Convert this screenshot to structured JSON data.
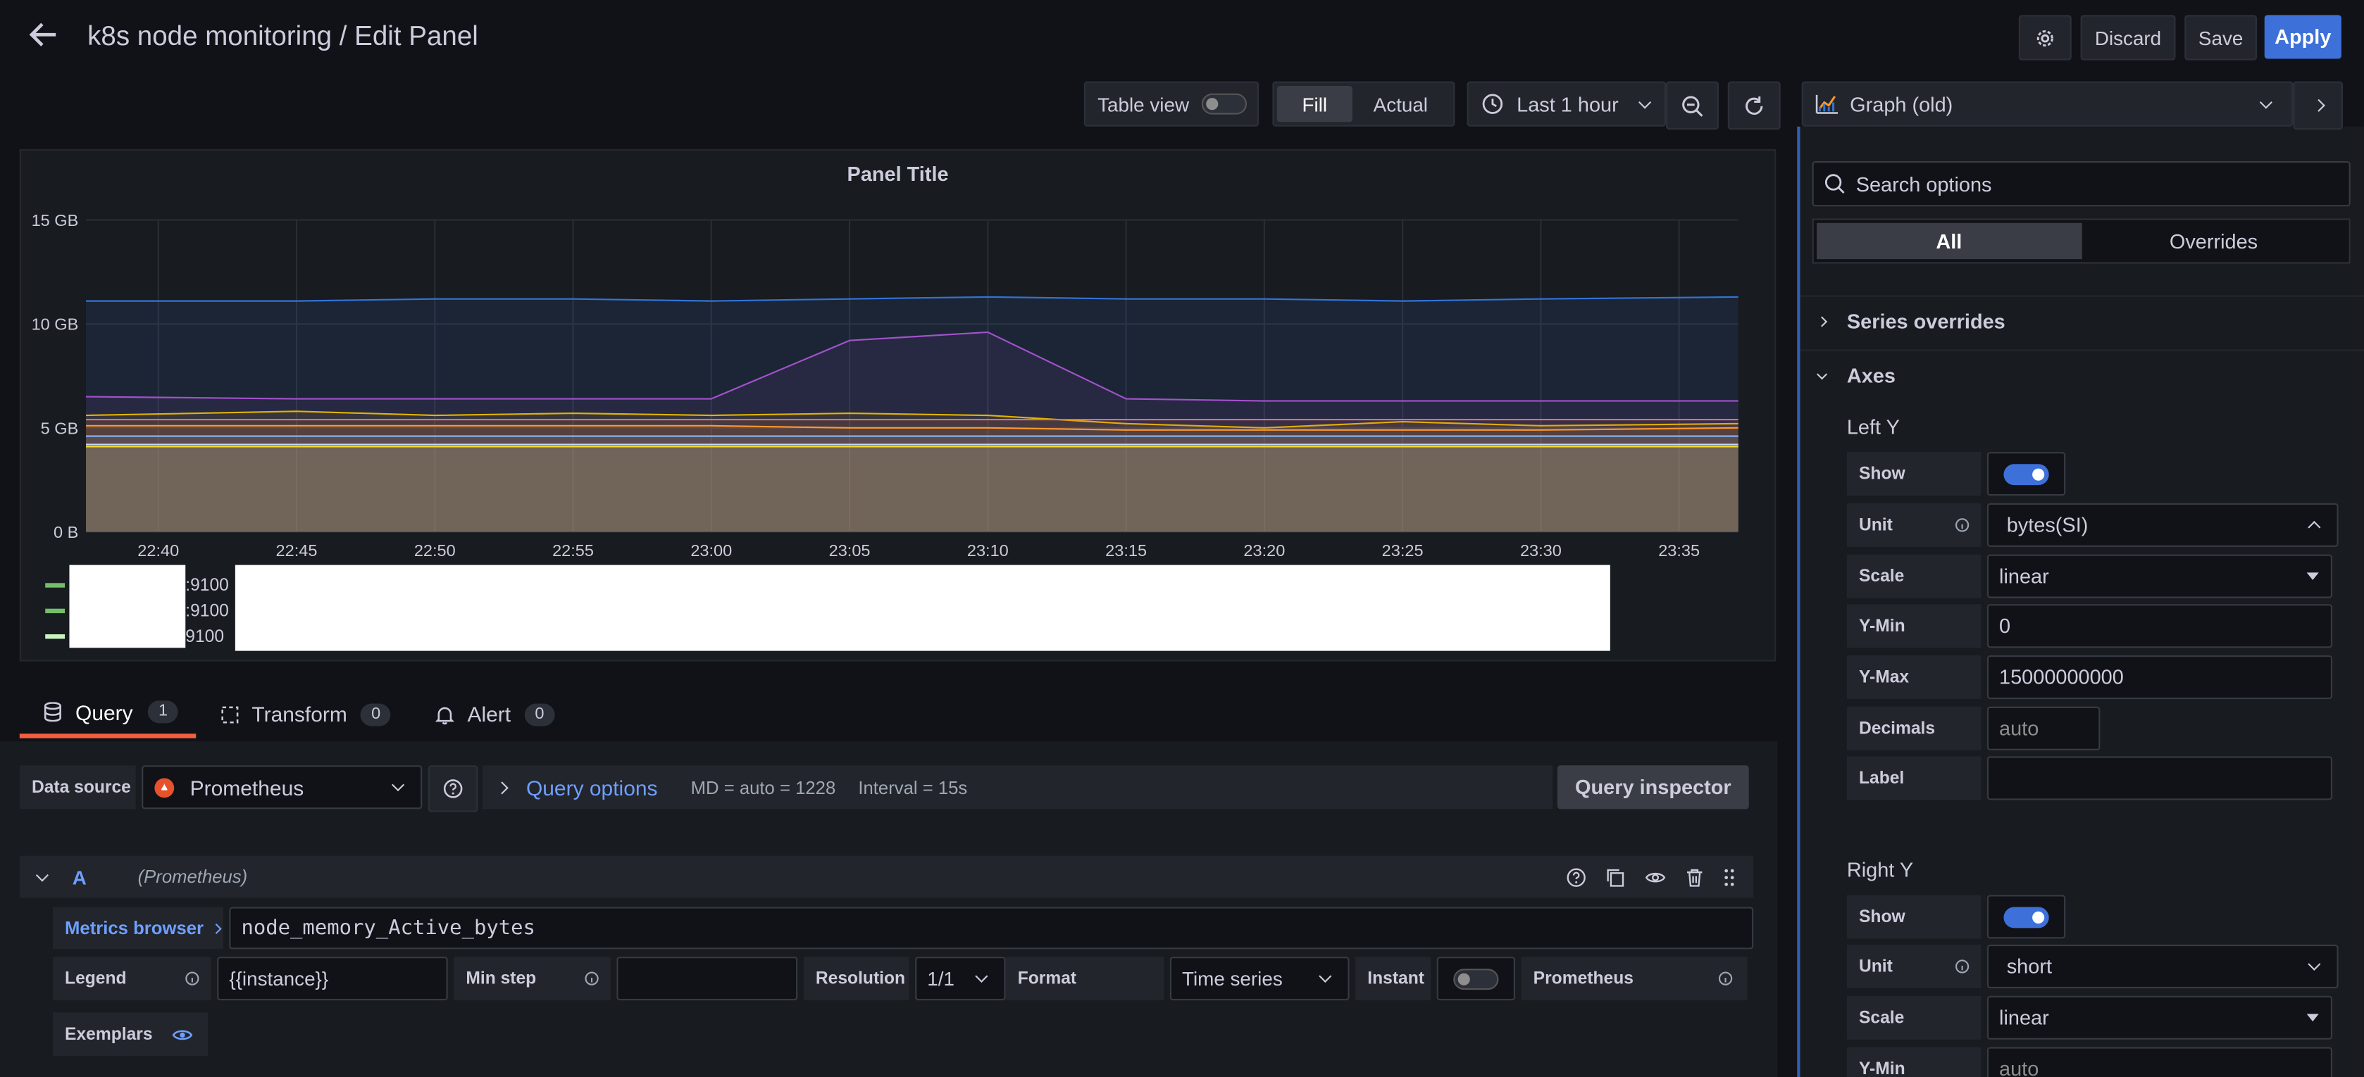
{
  "header": {
    "title": "k8s node monitoring / Edit Panel",
    "discard_label": "Discard",
    "save_label": "Save",
    "apply_label": "Apply"
  },
  "toolbar": {
    "table_view_label": "Table view",
    "table_view_on": false,
    "fill_label": "Fill",
    "actual_label": "Actual",
    "time_range": "Last 1 hour"
  },
  "viz": {
    "picker_label": "Graph (old)",
    "search_placeholder": "Search options",
    "tab_all": "All",
    "tab_overrides": "Overrides",
    "section_series_overrides": "Series overrides",
    "section_axes": "Axes",
    "left_y": {
      "title": "Left Y",
      "show_label": "Show",
      "unit_label": "Unit",
      "unit_value": "bytes(SI)",
      "scale_label": "Scale",
      "scale_value": "linear",
      "ymin_label": "Y-Min",
      "ymin_value": "0",
      "ymax_label": "Y-Max",
      "ymax_value": "15000000000",
      "decimals_label": "Decimals",
      "decimals_placeholder": "auto",
      "label_label": "Label"
    },
    "right_y": {
      "title": "Right Y",
      "show_label": "Show",
      "unit_label": "Unit",
      "unit_value": "short",
      "scale_label": "Scale",
      "scale_value": "linear",
      "ymin_label": "Y-Min",
      "ymin_placeholder": "auto"
    }
  },
  "chart_data": {
    "type": "area",
    "title": "Panel Title",
    "y_ticks": [
      "15 GB",
      "10 GB",
      "5 GB",
      "0 B"
    ],
    "ylim": [
      0,
      15
    ],
    "y_unit": "GB",
    "x": [
      "22:40",
      "22:45",
      "22:50",
      "22:55",
      "23:00",
      "23:05",
      "23:10",
      "23:15",
      "23:20",
      "23:25",
      "23:30",
      "23:35"
    ],
    "grid": true,
    "legend_placement": "bottom-left",
    "legend_entries": [
      ":9100",
      ":9100",
      "9100"
    ],
    "series": [
      {
        "color": "#3274d9",
        "values": [
          11.1,
          11.1,
          11.2,
          11.2,
          11.1,
          11.2,
          11.3,
          11.2,
          11.2,
          11.1,
          11.2,
          11.3
        ]
      },
      {
        "color": "#a352cc",
        "values": [
          6.5,
          6.4,
          6.4,
          6.4,
          6.4,
          9.2,
          9.6,
          6.4,
          6.3,
          6.3,
          6.3,
          6.3
        ]
      },
      {
        "color": "#e0b400",
        "values": [
          5.6,
          5.8,
          5.6,
          5.7,
          5.6,
          5.7,
          5.6,
          5.2,
          5.0,
          5.3,
          5.1,
          5.2
        ]
      },
      {
        "color": "#e66c6c",
        "values": [
          5.4,
          5.4,
          5.4,
          5.4,
          5.4,
          5.4,
          5.4,
          5.4,
          5.4,
          5.4,
          5.4,
          5.4
        ]
      },
      {
        "color": "#ff9830",
        "values": [
          5.1,
          5.1,
          5.1,
          5.1,
          5.1,
          5.0,
          5.0,
          4.9,
          4.9,
          4.9,
          4.9,
          5.0
        ]
      },
      {
        "color": "#8ab8ff",
        "values": [
          4.6,
          4.6,
          4.6,
          4.6,
          4.6,
          4.6,
          4.6,
          4.6,
          4.6,
          4.6,
          4.6,
          4.6
        ]
      },
      {
        "color": "#c0d8ff",
        "values": [
          4.2,
          4.2,
          4.2,
          4.2,
          4.2,
          4.2,
          4.2,
          4.2,
          4.2,
          4.2,
          4.2,
          4.2
        ]
      },
      {
        "color": "#fade2a",
        "values": [
          4.1,
          4.1,
          4.1,
          4.1,
          4.1,
          4.1,
          4.1,
          4.1,
          4.1,
          4.1,
          4.1,
          4.1
        ]
      }
    ]
  },
  "tabs": {
    "query": {
      "label": "Query",
      "count": "1"
    },
    "transform": {
      "label": "Transform",
      "count": "0"
    },
    "alert": {
      "label": "Alert",
      "count": "0"
    }
  },
  "query_bar": {
    "datasource_label": "Data source",
    "datasource_value": "Prometheus",
    "query_options_label": "Query options",
    "md_text": "MD = auto = 1228",
    "interval_text": "Interval = 15s",
    "inspector_label": "Query inspector"
  },
  "query": {
    "ref_id": "A",
    "source": "(Prometheus)",
    "metrics_browser_label": "Metrics browser",
    "expr": "node_memory_Active_bytes",
    "legend_label": "Legend",
    "legend_value": "{{instance}}",
    "min_step_label": "Min step",
    "resolution_label": "Resolution",
    "resolution_value": "1/1",
    "format_label": "Format",
    "format_value": "Time series",
    "instant_label": "Instant",
    "prometheus_label": "Prometheus",
    "exemplars_label": "Exemplars"
  },
  "colors": {
    "accent": "#3d71d9",
    "link": "#6e9fff",
    "tab_active": "#f55f3e",
    "background": "#111217",
    "panel": "#181b1f"
  }
}
